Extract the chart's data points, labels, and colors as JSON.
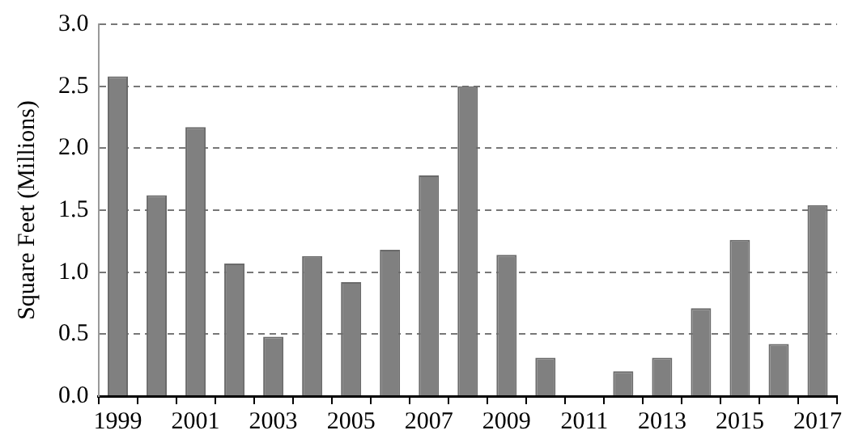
{
  "chart_data": {
    "type": "bar",
    "ylabel": "Square Feet (Millions)",
    "categories": [
      "1999",
      null,
      "2001",
      null,
      "2003",
      null,
      "2005",
      null,
      "2007",
      null,
      "2009",
      null,
      "2011",
      null,
      "2013",
      null,
      "2015",
      null,
      "2017"
    ],
    "values": [
      2.58,
      1.62,
      2.17,
      1.07,
      0.48,
      1.13,
      0.92,
      1.18,
      1.78,
      2.5,
      1.14,
      0.31,
      0,
      0.2,
      0.31,
      0.71,
      1.26,
      0.42,
      1.54
    ],
    "color": "#808080",
    "ylim": [
      0,
      3
    ],
    "yticks": [
      {
        "value": 0,
        "label": "0.0"
      },
      {
        "value": 0.5,
        "label": "0.5"
      },
      {
        "value": 1,
        "label": "1.0"
      },
      {
        "value": 1.5,
        "label": "1.5"
      },
      {
        "value": 2,
        "label": "2.0"
      },
      {
        "value": 2.5,
        "label": "2.5"
      },
      {
        "value": 3,
        "label": "3.0"
      }
    ],
    "grid": "y",
    "legend": false
  }
}
